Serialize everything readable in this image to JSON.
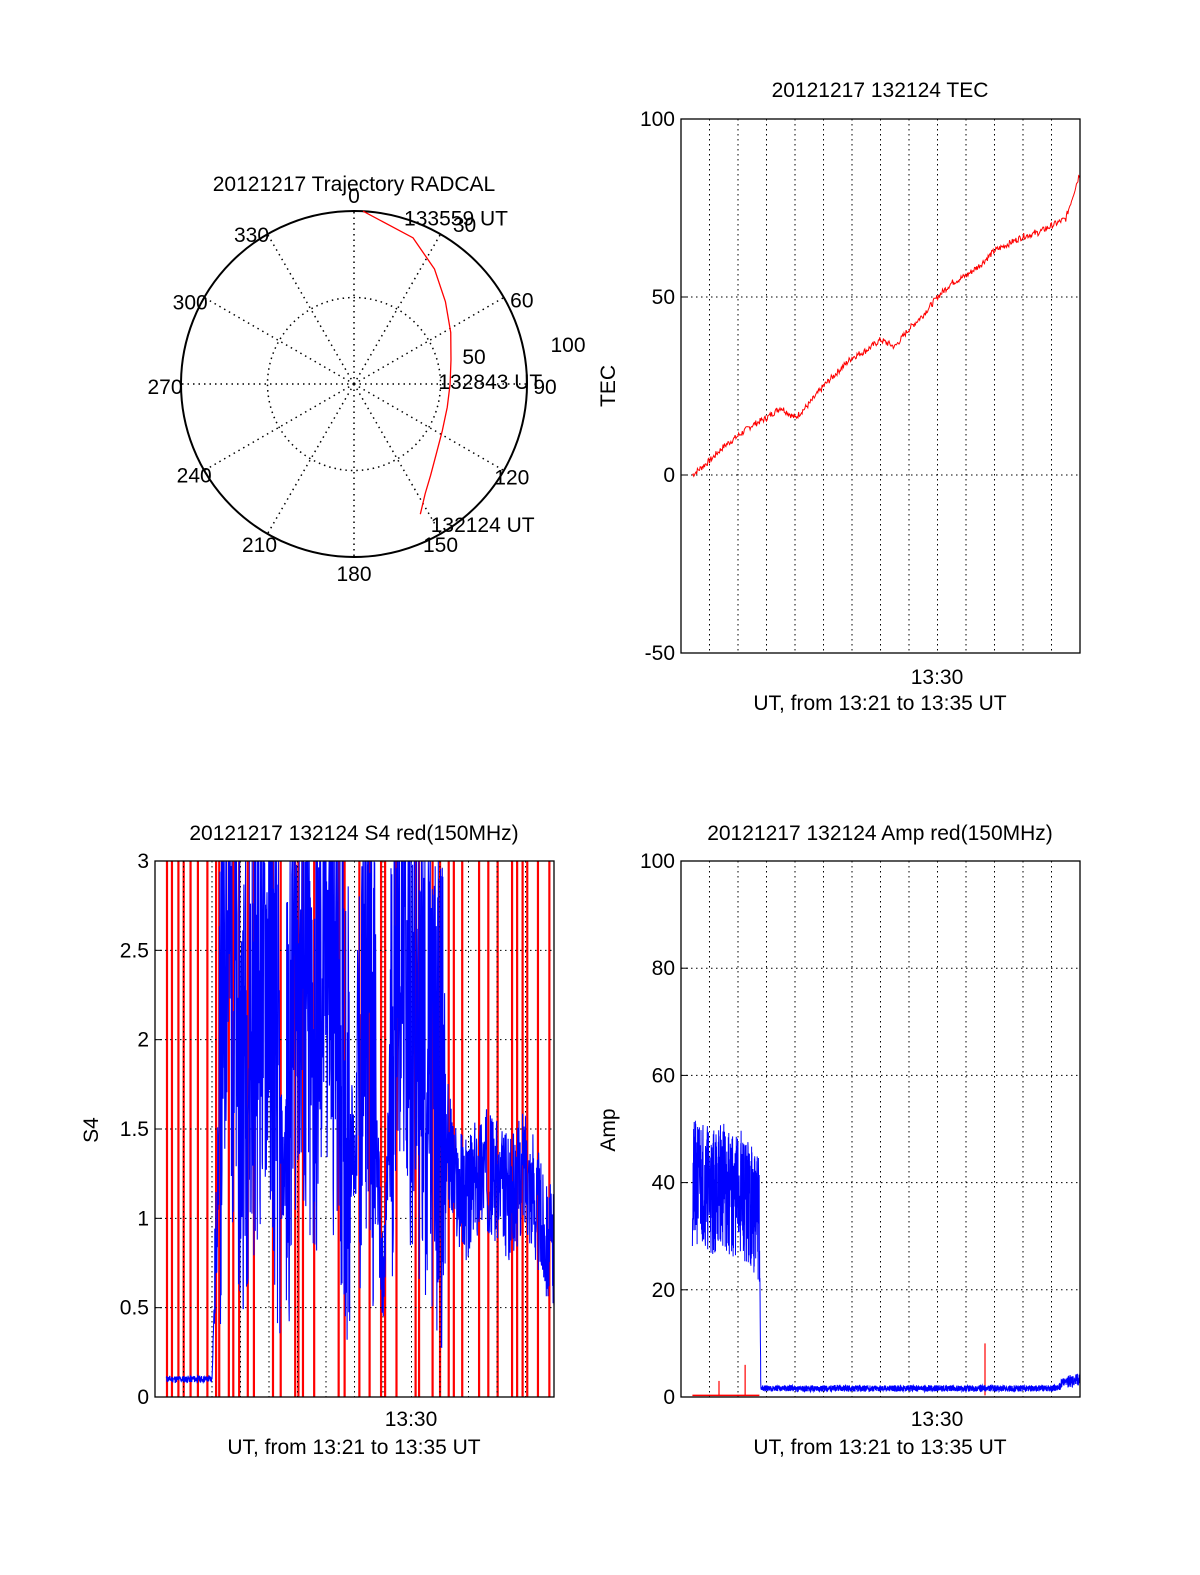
{
  "chart_data": [
    {
      "type": "polar",
      "title": "20121217 Trajectory RADCAL",
      "angle_ticks": [
        "0",
        "30",
        "60",
        "90",
        "120",
        "150",
        "180",
        "210",
        "240",
        "270",
        "300",
        "330"
      ],
      "radius_ticks": [
        "50",
        "100"
      ],
      "series": [
        {
          "color": "#ff0000",
          "points": [
            {
              "az": 153,
              "zen": 76
            },
            {
              "az": 147,
              "zen": 68
            },
            {
              "az": 140,
              "zen": 62
            },
            {
              "az": 130,
              "zen": 56
            },
            {
              "az": 118,
              "zen": 52
            },
            {
              "az": 104,
              "zen": 50
            },
            {
              "az": 90,
              "zen": 50
            },
            {
              "az": 76,
              "zen": 52
            },
            {
              "az": 62,
              "zen": 57
            },
            {
              "az": 48,
              "zen": 64
            },
            {
              "az": 35,
              "zen": 73
            },
            {
              "az": 22,
              "zen": 82
            },
            {
              "az": 3,
              "zen": 90
            }
          ]
        }
      ],
      "annotations": [
        {
          "text": "133559 UT",
          "az": 18,
          "zen": 91
        },
        {
          "text": "132843 UT",
          "az": 88,
          "zen": 46
        },
        {
          "text": "132124 UT",
          "az": 150,
          "zen": 84
        }
      ]
    },
    {
      "type": "line",
      "title": "20121217 132124 TEC",
      "xlabel": "UT, from 13:21 to 13:35 UT",
      "ylabel": "TEC",
      "x_tick_label": "13:30",
      "xlim": [
        "13:21:00",
        "13:35:00"
      ],
      "ylim": [
        -50,
        100
      ],
      "y_ticks": [
        "100",
        "50",
        "0",
        "-50"
      ],
      "series": [
        {
          "color": "#ff0000",
          "x": [
            "13:21:24",
            "13:22:00",
            "13:22:30",
            "13:23:00",
            "13:23:30",
            "13:24:00",
            "13:24:30",
            "13:25:00",
            "13:25:30",
            "13:26:00",
            "13:26:30",
            "13:27:00",
            "13:27:30",
            "13:28:00",
            "13:28:30",
            "13:29:00",
            "13:29:30",
            "13:30:00",
            "13:30:30",
            "13:31:00",
            "13:31:30",
            "13:32:00",
            "13:32:30",
            "13:33:00",
            "13:33:30",
            "13:34:00",
            "13:34:30",
            "13:35:00"
          ],
          "y": [
            0,
            4,
            8,
            11,
            14,
            16,
            19,
            16,
            20,
            25,
            29,
            33,
            35,
            38,
            36,
            41,
            45,
            50,
            54,
            56,
            59,
            63,
            65,
            67,
            68,
            70,
            72,
            85
          ]
        }
      ]
    },
    {
      "type": "line",
      "title": "20121217 132124 S4 red(150MHz)",
      "xlabel": "UT, from 13:21 to 13:35 UT",
      "ylabel": "S4",
      "x_tick_label": "13:30",
      "xlim": [
        "13:21:00",
        "13:35:00"
      ],
      "ylim": [
        0,
        3
      ],
      "y_ticks": [
        "3",
        "2.5",
        "2",
        "1.5",
        "1",
        "0.5",
        "0"
      ],
      "series": [
        {
          "color": "#0000ff",
          "x": [
            "13:21:24",
            "13:22:00",
            "13:22:30",
            "13:23:00",
            "13:23:30",
            "13:24:00",
            "13:24:30",
            "13:25:00",
            "13:25:30",
            "13:26:00",
            "13:26:30",
            "13:27:00",
            "13:27:30",
            "13:28:00",
            "13:28:30",
            "13:29:00",
            "13:29:30",
            "13:30:00",
            "13:30:30",
            "13:31:00",
            "13:31:30",
            "13:32:00",
            "13:32:30",
            "13:33:00",
            "13:33:30",
            "13:34:00",
            "13:34:30",
            "13:35:00"
          ],
          "y": [
            0.1,
            0.1,
            0.1,
            0.1,
            2.8,
            1.8,
            2.2,
            2.5,
            1.2,
            2.6,
            1.8,
            2.6,
            2.0,
            1.3,
            2.5,
            0.5,
            2.8,
            2.2,
            1.9,
            1.7,
            1.2,
            1.1,
            1.3,
            1.2,
            1.1,
            1.3,
            1.0,
            0.8
          ]
        }
      ],
      "red_spikes_note": "dense red vertical spikes reaching the top of the axis"
    },
    {
      "type": "line",
      "title": "20121217 132124 Amp red(150MHz)",
      "xlabel": "UT, from 13:21 to 13:35 UT",
      "ylabel": "Amp",
      "x_tick_label": "13:30",
      "xlim": [
        "13:21:00",
        "13:35:00"
      ],
      "ylim": [
        0,
        100
      ],
      "y_ticks": [
        "100",
        "80",
        "60",
        "40",
        "20",
        "0"
      ],
      "series": [
        {
          "color": "#0000ff",
          "x": [
            "13:21:24",
            "13:21:45",
            "13:22:05",
            "13:22:25",
            "13:22:45",
            "13:23:05",
            "13:23:25",
            "13:23:45",
            "13:23:48",
            "13:25:00",
            "13:27:00",
            "13:29:00",
            "13:31:00",
            "13:33:00",
            "13:34:00",
            "13:35:00"
          ],
          "y": [
            39,
            41,
            38,
            40,
            37,
            38,
            36,
            33,
            1,
            1,
            1,
            1,
            1,
            1,
            1,
            2
          ]
        },
        {
          "color": "#ff0000",
          "x": [
            "13:21:24",
            "13:23:45",
            "13:35:00"
          ],
          "y": [
            0.3,
            0.3,
            0.3
          ]
        }
      ]
    }
  ]
}
